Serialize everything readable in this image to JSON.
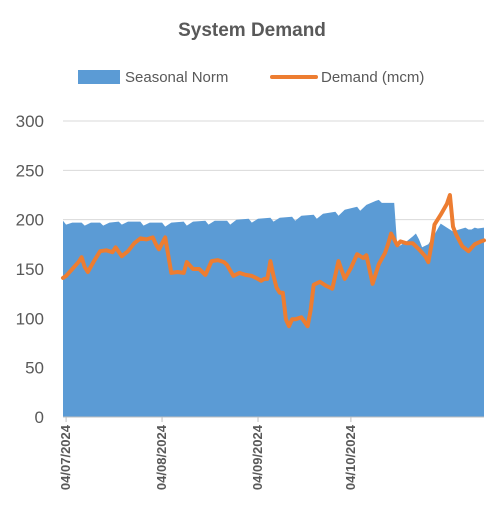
{
  "chart_data": {
    "type": "area",
    "title": "System Demand",
    "xlabel": "",
    "ylabel": "",
    "x_ticks": [
      "04/07/2024",
      "04/08/2024",
      "04/09/2024",
      "04/10/2024"
    ],
    "ylim": [
      0,
      300
    ],
    "y_ticks": [
      0,
      50,
      100,
      150,
      200,
      250,
      300
    ],
    "grid": true,
    "legend": "top",
    "x_start": "2024-06-30",
    "series": [
      {
        "name": "Seasonal Norm",
        "type": "area",
        "color": "#5B9BD5",
        "points": [
          [
            "2024-06-30",
            199
          ],
          [
            "2024-07-01",
            195
          ],
          [
            "2024-07-03",
            197
          ],
          [
            "2024-07-06",
            197
          ],
          [
            "2024-07-07",
            194
          ],
          [
            "2024-07-09",
            197
          ],
          [
            "2024-07-12",
            197
          ],
          [
            "2024-07-13",
            194
          ],
          [
            "2024-07-15",
            197
          ],
          [
            "2024-07-18",
            198
          ],
          [
            "2024-07-19",
            195
          ],
          [
            "2024-07-21",
            198
          ],
          [
            "2024-07-25",
            198
          ],
          [
            "2024-07-26",
            194
          ],
          [
            "2024-07-28",
            197
          ],
          [
            "2024-08-01",
            197
          ],
          [
            "2024-08-02",
            193
          ],
          [
            "2024-08-04",
            197
          ],
          [
            "2024-08-08",
            198
          ],
          [
            "2024-08-09",
            194
          ],
          [
            "2024-08-11",
            198
          ],
          [
            "2024-08-15",
            199
          ],
          [
            "2024-08-16",
            195
          ],
          [
            "2024-08-18",
            199
          ],
          [
            "2024-08-22",
            199
          ],
          [
            "2024-08-23",
            195
          ],
          [
            "2024-08-25",
            200
          ],
          [
            "2024-08-29",
            201
          ],
          [
            "2024-08-30",
            197
          ],
          [
            "2024-09-01",
            201
          ],
          [
            "2024-09-05",
            202
          ],
          [
            "2024-09-06",
            198
          ],
          [
            "2024-09-08",
            202
          ],
          [
            "2024-09-12",
            203
          ],
          [
            "2024-09-13",
            199
          ],
          [
            "2024-09-15",
            204
          ],
          [
            "2024-09-19",
            205
          ],
          [
            "2024-09-20",
            201
          ],
          [
            "2024-09-22",
            206
          ],
          [
            "2024-09-26",
            208
          ],
          [
            "2024-09-27",
            204
          ],
          [
            "2024-09-29",
            210
          ],
          [
            "2024-10-03",
            213
          ],
          [
            "2024-10-04",
            209
          ],
          [
            "2024-10-06",
            215
          ],
          [
            "2024-10-09",
            219
          ],
          [
            "2024-10-10",
            220
          ],
          [
            "2024-10-11",
            217
          ],
          [
            "2024-10-15",
            217
          ],
          [
            "2024-10-16",
            172
          ],
          [
            "2024-10-19",
            178
          ],
          [
            "2024-10-21",
            183
          ],
          [
            "2024-10-22",
            186
          ],
          [
            "2024-10-23",
            180
          ],
          [
            "2024-10-24",
            172
          ],
          [
            "2024-10-26",
            175
          ],
          [
            "2024-10-28",
            185
          ],
          [
            "2024-10-30",
            196
          ],
          [
            "2024-11-01",
            192
          ],
          [
            "2024-11-03",
            188
          ],
          [
            "2024-11-05",
            190
          ],
          [
            "2024-11-07",
            192
          ],
          [
            "2024-11-08",
            190
          ],
          [
            "2024-11-09",
            190
          ],
          [
            "2024-11-10",
            192
          ],
          [
            "2024-11-11",
            191
          ],
          [
            "2024-11-13",
            192
          ]
        ]
      },
      {
        "name": "Demand (mcm)",
        "type": "line",
        "color": "#ED7D31",
        "points": [
          [
            "2024-06-30",
            141
          ],
          [
            "2024-07-01",
            143
          ],
          [
            "2024-07-03",
            150
          ],
          [
            "2024-07-05",
            157
          ],
          [
            "2024-07-06",
            162
          ],
          [
            "2024-07-07",
            152
          ],
          [
            "2024-07-08",
            147
          ],
          [
            "2024-07-10",
            158
          ],
          [
            "2024-07-12",
            168
          ],
          [
            "2024-07-14",
            169
          ],
          [
            "2024-07-16",
            167
          ],
          [
            "2024-07-17",
            172
          ],
          [
            "2024-07-19",
            163
          ],
          [
            "2024-07-21",
            168
          ],
          [
            "2024-07-23",
            176
          ],
          [
            "2024-07-25",
            181
          ],
          [
            "2024-07-27",
            180
          ],
          [
            "2024-07-29",
            182
          ],
          [
            "2024-07-30",
            175
          ],
          [
            "2024-07-31",
            170
          ],
          [
            "2024-08-02",
            182
          ],
          [
            "2024-08-04",
            146
          ],
          [
            "2024-08-06",
            147
          ],
          [
            "2024-08-08",
            146
          ],
          [
            "2024-08-09",
            157
          ],
          [
            "2024-08-11",
            150
          ],
          [
            "2024-08-13",
            150
          ],
          [
            "2024-08-15",
            144
          ],
          [
            "2024-08-17",
            158
          ],
          [
            "2024-08-19",
            159
          ],
          [
            "2024-08-21",
            157
          ],
          [
            "2024-08-22",
            154
          ],
          [
            "2024-08-24",
            143
          ],
          [
            "2024-08-26",
            146
          ],
          [
            "2024-08-28",
            144
          ],
          [
            "2024-08-30",
            143
          ],
          [
            "2024-09-01",
            140
          ],
          [
            "2024-09-02",
            138
          ],
          [
            "2024-09-03",
            140
          ],
          [
            "2024-09-04",
            140
          ],
          [
            "2024-09-05",
            158
          ],
          [
            "2024-09-06",
            143
          ],
          [
            "2024-09-07",
            131
          ],
          [
            "2024-09-08",
            126
          ],
          [
            "2024-09-09",
            126
          ],
          [
            "2024-09-10",
            99
          ],
          [
            "2024-09-11",
            92
          ],
          [
            "2024-09-12",
            99
          ],
          [
            "2024-09-13",
            99
          ],
          [
            "2024-09-15",
            101
          ],
          [
            "2024-09-17",
            92
          ],
          [
            "2024-09-18",
            108
          ],
          [
            "2024-09-19",
            134
          ],
          [
            "2024-09-21",
            137
          ],
          [
            "2024-09-23",
            133
          ],
          [
            "2024-09-25",
            130
          ],
          [
            "2024-09-27",
            158
          ],
          [
            "2024-09-29",
            140
          ],
          [
            "2024-10-01",
            151
          ],
          [
            "2024-10-03",
            165
          ],
          [
            "2024-10-05",
            161
          ],
          [
            "2024-10-06",
            164
          ],
          [
            "2024-10-08",
            135
          ],
          [
            "2024-10-10",
            155
          ],
          [
            "2024-10-12",
            166
          ],
          [
            "2024-10-13",
            175
          ],
          [
            "2024-10-14",
            186
          ],
          [
            "2024-10-16",
            174
          ],
          [
            "2024-10-17",
            178
          ],
          [
            "2024-10-19",
            176
          ],
          [
            "2024-10-21",
            176
          ],
          [
            "2024-10-23",
            170
          ],
          [
            "2024-10-25",
            163
          ],
          [
            "2024-10-26",
            157
          ],
          [
            "2024-10-27",
            174
          ],
          [
            "2024-10-28",
            195
          ],
          [
            "2024-10-30",
            205
          ],
          [
            "2024-11-01",
            216
          ],
          [
            "2024-11-02",
            225
          ],
          [
            "2024-11-03",
            193
          ],
          [
            "2024-11-04",
            185
          ],
          [
            "2024-11-06",
            173
          ],
          [
            "2024-11-08",
            168
          ],
          [
            "2024-11-10",
            175
          ],
          [
            "2024-11-12",
            178
          ],
          [
            "2024-11-13",
            179
          ]
        ]
      }
    ],
    "axis_color": "#bfbfbf",
    "grid_color": "#d9d9d9",
    "text_color": "#595959"
  }
}
